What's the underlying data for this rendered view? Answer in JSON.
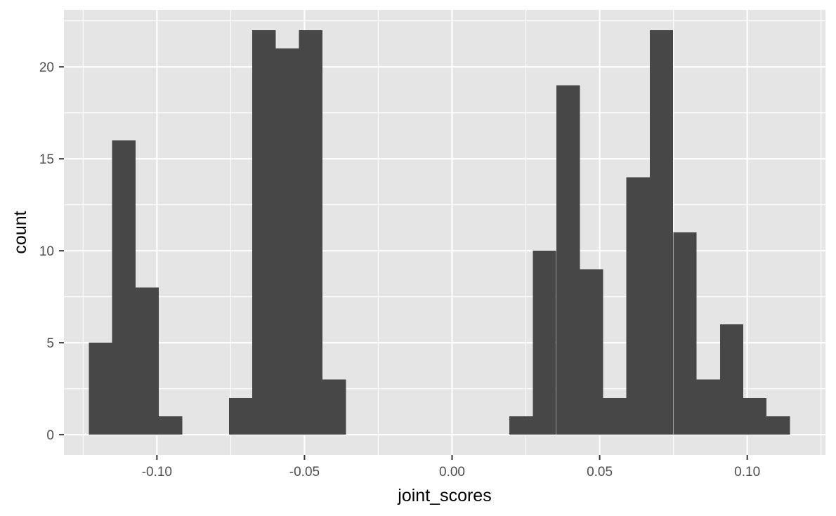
{
  "chart_data": {
    "type": "bar",
    "title": "",
    "xlabel": "joint_scores",
    "ylabel": "count",
    "xlim": [
      -0.1315,
      0.1265
    ],
    "ylim": [
      -1.1,
      23.1
    ],
    "x_breaks": [
      -0.1,
      -0.05,
      0.0,
      0.05,
      0.1
    ],
    "x_tick_labels": [
      "-0.10",
      "-0.05",
      "0.00",
      "0.05",
      "0.10"
    ],
    "y_breaks": [
      0,
      5,
      10,
      15,
      20
    ],
    "y_tick_labels": [
      "0",
      "5",
      "10",
      "15",
      "20"
    ],
    "bin_width": 0.00792,
    "bins": [
      {
        "x": -0.1191,
        "count": 5
      },
      {
        "x": -0.1112,
        "count": 16
      },
      {
        "x": -0.1033,
        "count": 8
      },
      {
        "x": -0.0954,
        "count": 1
      },
      {
        "x": -0.0875,
        "count": 0
      },
      {
        "x": -0.0795,
        "count": 0
      },
      {
        "x": -0.0716,
        "count": 2
      },
      {
        "x": -0.0637,
        "count": 22
      },
      {
        "x": -0.0558,
        "count": 21
      },
      {
        "x": -0.0479,
        "count": 22
      },
      {
        "x": -0.0399,
        "count": 3
      },
      {
        "x": -0.032,
        "count": 0
      },
      {
        "x": -0.0241,
        "count": 0
      },
      {
        "x": -0.0162,
        "count": 0
      },
      {
        "x": -0.0083,
        "count": 0
      },
      {
        "x": -0.0003,
        "count": 0
      },
      {
        "x": 0.0076,
        "count": 0
      },
      {
        "x": 0.0155,
        "count": 0
      },
      {
        "x": 0.0234,
        "count": 1
      },
      {
        "x": 0.0313,
        "count": 10
      },
      {
        "x": 0.0393,
        "count": 19
      },
      {
        "x": 0.0472,
        "count": 9
      },
      {
        "x": 0.0551,
        "count": 2
      },
      {
        "x": 0.063,
        "count": 14
      },
      {
        "x": 0.0709,
        "count": 22
      },
      {
        "x": 0.0789,
        "count": 11
      },
      {
        "x": 0.0868,
        "count": 3
      },
      {
        "x": 0.0947,
        "count": 6
      },
      {
        "x": 0.1026,
        "count": 2
      },
      {
        "x": 0.1105,
        "count": 1
      }
    ],
    "bar_color": "#474747",
    "panel_background": "#e5e5e5",
    "grid": true,
    "grid_color": "#ffffff",
    "legend": "none"
  }
}
